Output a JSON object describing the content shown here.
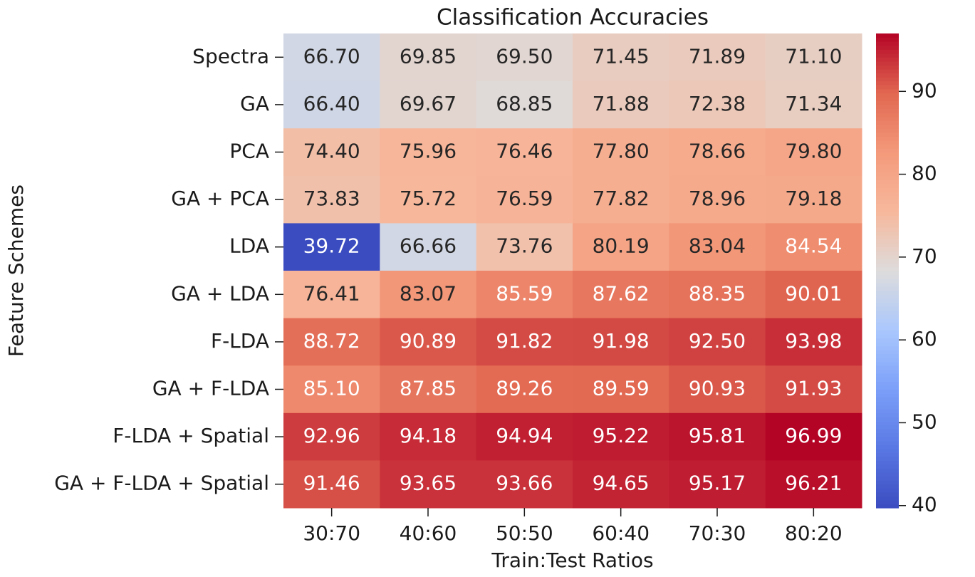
{
  "chart_data": {
    "type": "heatmap",
    "title": "Classification Accuracies",
    "x_label": "Train:Test Ratios",
    "y_label": "Feature Schemes",
    "categories": [
      "30:70",
      "40:60",
      "50:50",
      "60:40",
      "70:30",
      "80:20"
    ],
    "rows": [
      "Spectra",
      "GA",
      "PCA",
      "GA + PCA",
      "LDA",
      "GA + LDA",
      "F-LDA",
      "GA + F-LDA",
      "F-LDA + Spatial",
      "GA + F-LDA + Spatial"
    ],
    "values": [
      [
        66.7,
        69.85,
        69.5,
        71.45,
        71.89,
        71.1
      ],
      [
        66.4,
        69.67,
        68.85,
        71.88,
        72.38,
        71.34
      ],
      [
        74.4,
        75.96,
        76.46,
        77.8,
        78.66,
        79.8
      ],
      [
        73.83,
        75.72,
        76.59,
        77.82,
        78.96,
        79.18
      ],
      [
        39.72,
        66.66,
        73.76,
        80.19,
        83.04,
        84.54
      ],
      [
        76.41,
        83.07,
        85.59,
        87.62,
        88.35,
        90.01
      ],
      [
        88.72,
        90.89,
        91.82,
        91.98,
        92.5,
        93.98
      ],
      [
        85.1,
        87.85,
        89.26,
        89.59,
        90.93,
        91.93
      ],
      [
        92.96,
        94.18,
        94.94,
        95.22,
        95.81,
        96.99
      ],
      [
        91.46,
        93.65,
        93.66,
        94.65,
        95.17,
        96.21
      ]
    ],
    "value_labels": [
      [
        "66.70",
        "69.85",
        "69.50",
        "71.45",
        "71.89",
        "71.10"
      ],
      [
        "66.40",
        "69.67",
        "68.85",
        "71.88",
        "72.38",
        "71.34"
      ],
      [
        "74.40",
        "75.96",
        "76.46",
        "77.80",
        "78.66",
        "79.80"
      ],
      [
        "73.83",
        "75.72",
        "76.59",
        "77.82",
        "78.96",
        "79.18"
      ],
      [
        "39.72",
        "66.66",
        "73.76",
        "80.19",
        "83.04",
        "84.54"
      ],
      [
        "76.41",
        "83.07",
        "85.59",
        "87.62",
        "88.35",
        "90.01"
      ],
      [
        "88.72",
        "90.89",
        "91.82",
        "91.98",
        "92.50",
        "93.98"
      ],
      [
        "85.10",
        "87.85",
        "89.26",
        "89.59",
        "90.93",
        "91.93"
      ],
      [
        "92.96",
        "94.18",
        "94.94",
        "95.22",
        "95.81",
        "96.99"
      ],
      [
        "91.46",
        "93.65",
        "93.66",
        "94.65",
        "95.17",
        "96.21"
      ]
    ],
    "colormap": "coolwarm",
    "zlim": [
      39.72,
      96.99
    ],
    "zticks": [
      40,
      50,
      60,
      70,
      80,
      90
    ]
  }
}
